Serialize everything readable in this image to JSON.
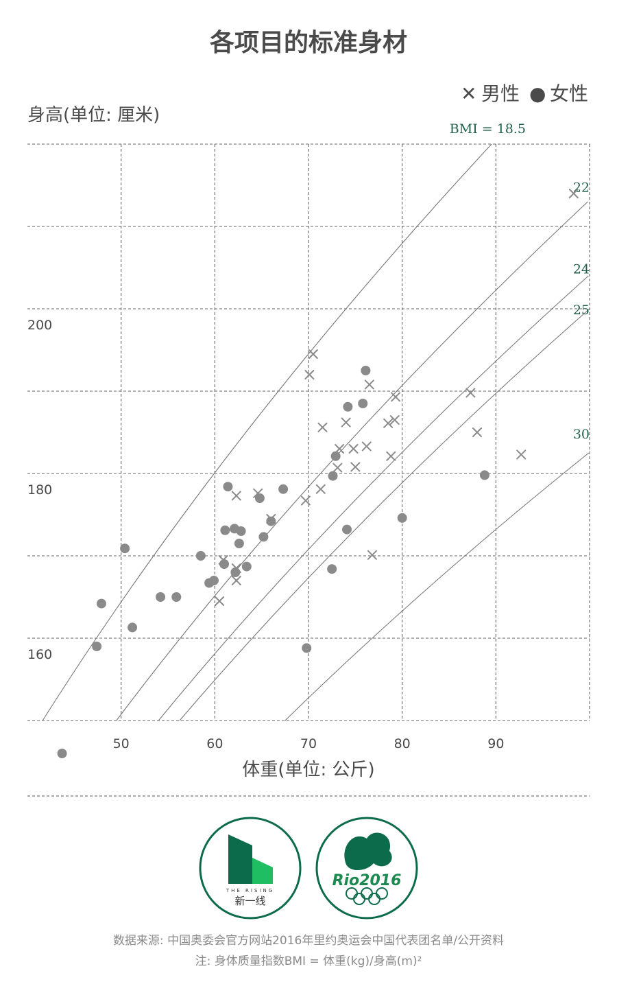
{
  "chart_data": {
    "type": "scatter",
    "title": "各项目的标准身材",
    "xlabel": "体重(单位: 公斤)",
    "ylabel": "身高(单位: 厘米)",
    "xlim": [
      40,
      100
    ],
    "ylim": [
      150,
      220
    ],
    "x_ticks": [
      50,
      60,
      70,
      80,
      90
    ],
    "y_ticks": [
      160,
      180,
      200
    ],
    "grid": true,
    "legend_position": "top-right",
    "series": [
      {
        "name": "男性",
        "marker": "x",
        "color": "#8a8a8a",
        "points": [
          {
            "x": 98.3,
            "y": 214
          },
          {
            "x": 70.5,
            "y": 194.5
          },
          {
            "x": 70.1,
            "y": 192
          },
          {
            "x": 76.5,
            "y": 190.8
          },
          {
            "x": 79.3,
            "y": 189.3
          },
          {
            "x": 87.3,
            "y": 189.8
          },
          {
            "x": 79.2,
            "y": 186.5
          },
          {
            "x": 78.5,
            "y": 186.1
          },
          {
            "x": 71.5,
            "y": 185.6
          },
          {
            "x": 74.0,
            "y": 186.2
          },
          {
            "x": 88.0,
            "y": 185.0
          },
          {
            "x": 76.2,
            "y": 183.3
          },
          {
            "x": 73.3,
            "y": 183.0
          },
          {
            "x": 74.8,
            "y": 183.0
          },
          {
            "x": 78.8,
            "y": 182.1
          },
          {
            "x": 92.7,
            "y": 182.3
          },
          {
            "x": 73.1,
            "y": 180.7
          },
          {
            "x": 75.0,
            "y": 180.8
          },
          {
            "x": 71.3,
            "y": 178.1
          },
          {
            "x": 69.7,
            "y": 176.7
          },
          {
            "x": 64.6,
            "y": 177.6
          },
          {
            "x": 62.3,
            "y": 177.3
          },
          {
            "x": 66.0,
            "y": 174.5
          },
          {
            "x": 60.9,
            "y": 169.5
          },
          {
            "x": 62.3,
            "y": 168.5
          },
          {
            "x": 76.8,
            "y": 170.1
          },
          {
            "x": 62.3,
            "y": 167.0
          },
          {
            "x": 60.5,
            "y": 164.5
          }
        ]
      },
      {
        "name": "女性",
        "marker": "circle",
        "color": "#8a8a8a",
        "points": [
          {
            "x": 76.1,
            "y": 192.5
          },
          {
            "x": 75.8,
            "y": 188.5
          },
          {
            "x": 74.2,
            "y": 188.1
          },
          {
            "x": 72.9,
            "y": 182.1
          },
          {
            "x": 72.6,
            "y": 179.7
          },
          {
            "x": 88.8,
            "y": 179.8
          },
          {
            "x": 61.4,
            "y": 178.4
          },
          {
            "x": 67.3,
            "y": 178.1
          },
          {
            "x": 64.8,
            "y": 177.0
          },
          {
            "x": 66.0,
            "y": 174.2
          },
          {
            "x": 80.0,
            "y": 174.6
          },
          {
            "x": 61.1,
            "y": 173.1
          },
          {
            "x": 62.1,
            "y": 173.3
          },
          {
            "x": 62.8,
            "y": 173.0
          },
          {
            "x": 65.2,
            "y": 172.3
          },
          {
            "x": 62.6,
            "y": 171.5
          },
          {
            "x": 74.1,
            "y": 173.2
          },
          {
            "x": 50.4,
            "y": 170.9
          },
          {
            "x": 58.5,
            "y": 170.0
          },
          {
            "x": 61.0,
            "y": 169.0
          },
          {
            "x": 63.4,
            "y": 168.7
          },
          {
            "x": 62.2,
            "y": 168.0
          },
          {
            "x": 72.5,
            "y": 168.4
          },
          {
            "x": 59.9,
            "y": 167.0
          },
          {
            "x": 59.4,
            "y": 166.7
          },
          {
            "x": 54.2,
            "y": 165.0
          },
          {
            "x": 55.9,
            "y": 165.0
          },
          {
            "x": 47.9,
            "y": 164.2
          },
          {
            "x": 51.2,
            "y": 161.3
          },
          {
            "x": 47.4,
            "y": 159.0
          },
          {
            "x": 69.8,
            "y": 158.8
          },
          {
            "x": 43.7,
            "y": 146.0
          }
        ]
      }
    ],
    "bmi_lines": [
      {
        "bmi": 18.5,
        "label": "BMI = 18.5"
      },
      {
        "bmi": 22,
        "label": "22"
      },
      {
        "bmi": 24,
        "label": "24"
      },
      {
        "bmi": 25,
        "label": "25"
      },
      {
        "bmi": 30,
        "label": "30"
      }
    ]
  },
  "legend": {
    "male_marker": "✕",
    "male_label": "男性",
    "female_marker": "●",
    "female_label": "女性"
  },
  "colors": {
    "text": "#4a4a4a",
    "marker": "#8a8a8a",
    "bmi_label": "#1f5f4a",
    "logo_green": "#0b6b4a",
    "logo_light_green": "#1fbe62"
  },
  "logos": {
    "left_brand_en": "THE RISING",
    "left_brand_cn": "新一线",
    "right_brand": "Rio2016"
  },
  "footer": {
    "source": "数据来源: 中国奥委会官方网站2016年里约奥运会中国代表团名单/公开资料",
    "note": "注: 身体质量指数BMI = 体重(kg)/身高(m)²"
  }
}
